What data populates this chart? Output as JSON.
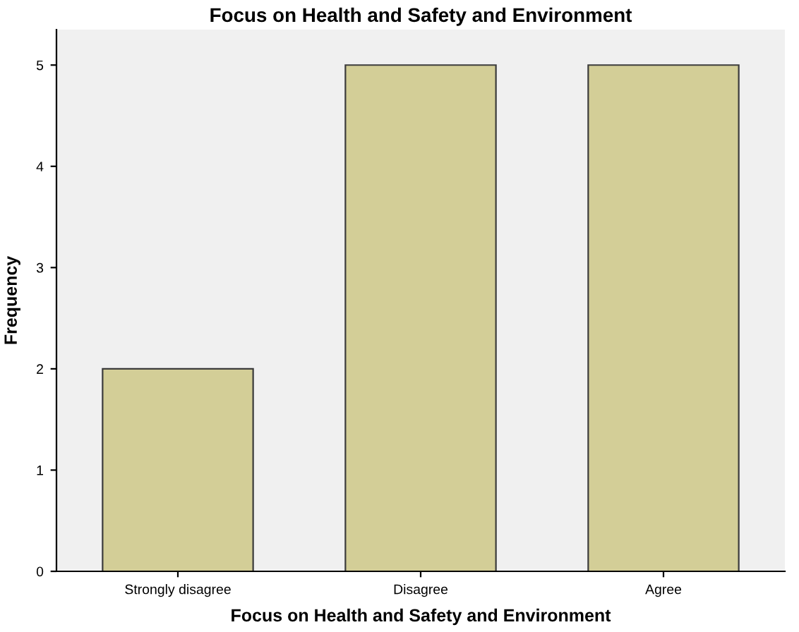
{
  "chart_data": {
    "type": "bar",
    "title": "Focus on Health and Safety and Environment",
    "xlabel": "Focus on Health and Safety and Environment",
    "ylabel": "Frequency",
    "categories": [
      "Strongly disagree",
      "Disagree",
      "Agree"
    ],
    "values": [
      2,
      5,
      5
    ],
    "color": "#d3ce97",
    "ylim": [
      0,
      5.35
    ],
    "yticks": [
      0,
      1,
      2,
      3,
      4,
      5
    ],
    "grid": false,
    "legend": false
  }
}
